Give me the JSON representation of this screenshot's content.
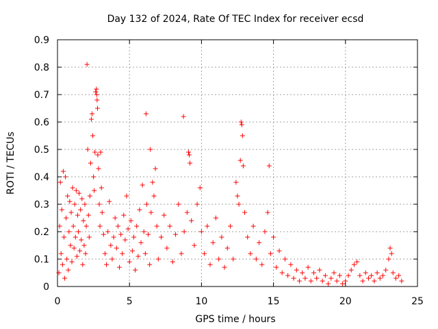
{
  "chart_data": {
    "type": "scatter",
    "title": "Day 132 of 2024, Rate Of TEC Index for receiver ecsd",
    "xlabel": "GPS time / hours",
    "ylabel": "ROTI / TECUs",
    "xlim": [
      0,
      25
    ],
    "ylim": [
      0,
      0.9
    ],
    "grid": true,
    "marker": "+",
    "series_color": "#ff0000",
    "x_ticks": [
      0,
      5,
      10,
      15,
      20,
      25
    ],
    "x_tick_labels": [
      "0",
      "5",
      "10",
      "15",
      "20",
      "25"
    ],
    "y_ticks": [
      0,
      0.1,
      0.2,
      0.3,
      0.4,
      0.5,
      0.6,
      0.7,
      0.8,
      0.9
    ],
    "y_tick_labels": [
      "0",
      "0.1",
      "0.2",
      "0.3",
      "0.4",
      "0.5",
      "0.6",
      "0.7",
      "0.8",
      "0.9"
    ],
    "series": [
      {
        "name": "ROTI",
        "points": [
          [
            0.1,
            0.05
          ],
          [
            0.15,
            0.22
          ],
          [
            0.2,
            0.38
          ],
          [
            0.25,
            0.12
          ],
          [
            0.3,
            0.28
          ],
          [
            0.35,
            0.08
          ],
          [
            0.4,
            0.42
          ],
          [
            0.45,
            0.18
          ],
          [
            0.5,
            0.03
          ],
          [
            0.55,
            0.4
          ],
          [
            0.6,
            0.25
          ],
          [
            0.65,
            0.1
          ],
          [
            0.7,
            0.33
          ],
          [
            0.75,
            0.06
          ],
          [
            0.8,
            0.2
          ],
          [
            0.85,
            0.31
          ],
          [
            0.9,
            0.15
          ],
          [
            0.95,
            0.27
          ],
          [
            1.0,
            0.09
          ],
          [
            1.05,
            0.36
          ],
          [
            1.1,
            0.22
          ],
          [
            1.15,
            0.14
          ],
          [
            1.2,
            0.3
          ],
          [
            1.25,
            0.18
          ],
          [
            1.3,
            0.35
          ],
          [
            1.35,
            0.11
          ],
          [
            1.4,
            0.26
          ],
          [
            1.45,
            0.2
          ],
          [
            1.5,
            0.34
          ],
          [
            1.55,
            0.13
          ],
          [
            1.6,
            0.28
          ],
          [
            1.65,
            0.17
          ],
          [
            1.7,
            0.32
          ],
          [
            1.75,
            0.08
          ],
          [
            1.8,
            0.24
          ],
          [
            1.85,
            0.15
          ],
          [
            1.9,
            0.3
          ],
          [
            1.95,
            0.12
          ],
          [
            2.0,
            0.22
          ],
          [
            2.05,
            0.81
          ],
          [
            2.1,
            0.5
          ],
          [
            2.15,
            0.26
          ],
          [
            2.2,
            0.18
          ],
          [
            2.25,
            0.33
          ],
          [
            2.3,
            0.45
          ],
          [
            2.35,
            0.61
          ],
          [
            2.4,
            0.63
          ],
          [
            2.45,
            0.55
          ],
          [
            2.5,
            0.4
          ],
          [
            2.55,
            0.35
          ],
          [
            2.6,
            0.49
          ],
          [
            2.65,
            0.71
          ],
          [
            2.7,
            0.72
          ],
          [
            2.72,
            0.7
          ],
          [
            2.75,
            0.68
          ],
          [
            2.78,
            0.65
          ],
          [
            2.8,
            0.48
          ],
          [
            2.85,
            0.43
          ],
          [
            2.9,
            0.3
          ],
          [
            2.95,
            0.22
          ],
          [
            3.0,
            0.49
          ],
          [
            3.05,
            0.36
          ],
          [
            3.1,
            0.27
          ],
          [
            3.2,
            0.19
          ],
          [
            3.3,
            0.12
          ],
          [
            3.4,
            0.08
          ],
          [
            3.5,
            0.2
          ],
          [
            3.6,
            0.31
          ],
          [
            3.7,
            0.15
          ],
          [
            3.8,
            0.1
          ],
          [
            3.9,
            0.18
          ],
          [
            4.0,
            0.25
          ],
          [
            4.1,
            0.14
          ],
          [
            4.2,
            0.22
          ],
          [
            4.3,
            0.07
          ],
          [
            4.4,
            0.19
          ],
          [
            4.5,
            0.12
          ],
          [
            4.6,
            0.26
          ],
          [
            4.7,
            0.17
          ],
          [
            4.8,
            0.33
          ],
          [
            4.9,
            0.21
          ],
          [
            5.0,
            0.09
          ],
          [
            5.1,
            0.24
          ],
          [
            5.2,
            0.13
          ],
          [
            5.3,
            0.18
          ],
          [
            5.4,
            0.06
          ],
          [
            5.5,
            0.22
          ],
          [
            5.6,
            0.11
          ],
          [
            5.7,
            0.28
          ],
          [
            5.8,
            0.16
          ],
          [
            5.9,
            0.37
          ],
          [
            6.0,
            0.2
          ],
          [
            6.1,
            0.12
          ],
          [
            6.15,
            0.63
          ],
          [
            6.2,
            0.3
          ],
          [
            6.3,
            0.19
          ],
          [
            6.4,
            0.08
          ],
          [
            6.45,
            0.5
          ],
          [
            6.5,
            0.27
          ],
          [
            6.6,
            0.38
          ],
          [
            6.7,
            0.33
          ],
          [
            6.8,
            0.43
          ],
          [
            6.9,
            0.22
          ],
          [
            7.0,
            0.1
          ],
          [
            7.2,
            0.18
          ],
          [
            7.4,
            0.26
          ],
          [
            7.6,
            0.14
          ],
          [
            7.8,
            0.22
          ],
          [
            8.0,
            0.09
          ],
          [
            8.2,
            0.19
          ],
          [
            8.4,
            0.3
          ],
          [
            8.6,
            0.12
          ],
          [
            8.75,
            0.62
          ],
          [
            8.8,
            0.2
          ],
          [
            9.0,
            0.27
          ],
          [
            9.1,
            0.49
          ],
          [
            9.15,
            0.48
          ],
          [
            9.2,
            0.45
          ],
          [
            9.3,
            0.24
          ],
          [
            9.5,
            0.15
          ],
          [
            9.7,
            0.3
          ],
          [
            9.9,
            0.36
          ],
          [
            10.0,
            0.2
          ],
          [
            10.2,
            0.12
          ],
          [
            10.4,
            0.22
          ],
          [
            10.6,
            0.08
          ],
          [
            10.8,
            0.16
          ],
          [
            11.0,
            0.25
          ],
          [
            11.2,
            0.1
          ],
          [
            11.4,
            0.18
          ],
          [
            11.6,
            0.07
          ],
          [
            11.8,
            0.14
          ],
          [
            12.0,
            0.22
          ],
          [
            12.2,
            0.1
          ],
          [
            12.4,
            0.38
          ],
          [
            12.5,
            0.33
          ],
          [
            12.6,
            0.3
          ],
          [
            12.7,
            0.46
          ],
          [
            12.75,
            0.6
          ],
          [
            12.8,
            0.59
          ],
          [
            12.85,
            0.55
          ],
          [
            12.9,
            0.44
          ],
          [
            13.0,
            0.27
          ],
          [
            13.2,
            0.18
          ],
          [
            13.4,
            0.12
          ],
          [
            13.6,
            0.22
          ],
          [
            13.8,
            0.1
          ],
          [
            14.0,
            0.16
          ],
          [
            14.2,
            0.08
          ],
          [
            14.4,
            0.2
          ],
          [
            14.6,
            0.27
          ],
          [
            14.7,
            0.44
          ],
          [
            14.8,
            0.12
          ],
          [
            15.0,
            0.18
          ],
          [
            15.2,
            0.07
          ],
          [
            15.4,
            0.13
          ],
          [
            15.6,
            0.05
          ],
          [
            15.8,
            0.1
          ],
          [
            16.0,
            0.04
          ],
          [
            16.2,
            0.08
          ],
          [
            16.4,
            0.03
          ],
          [
            16.6,
            0.06
          ],
          [
            16.8,
            0.02
          ],
          [
            17.0,
            0.05
          ],
          [
            17.2,
            0.03
          ],
          [
            17.4,
            0.07
          ],
          [
            17.6,
            0.02
          ],
          [
            17.8,
            0.05
          ],
          [
            18.0,
            0.03
          ],
          [
            18.2,
            0.06
          ],
          [
            18.4,
            0.02
          ],
          [
            18.6,
            0.04
          ],
          [
            18.8,
            0.01
          ],
          [
            19.0,
            0.03
          ],
          [
            19.2,
            0.05
          ],
          [
            19.4,
            0.02
          ],
          [
            19.6,
            0.04
          ],
          [
            19.8,
            0.01
          ],
          [
            20.0,
            0.02
          ],
          [
            20.2,
            0.04
          ],
          [
            20.4,
            0.06
          ],
          [
            20.6,
            0.08
          ],
          [
            20.8,
            0.09
          ],
          [
            21.0,
            0.04
          ],
          [
            21.2,
            0.02
          ],
          [
            21.4,
            0.05
          ],
          [
            21.6,
            0.03
          ],
          [
            21.8,
            0.04
          ],
          [
            22.0,
            0.02
          ],
          [
            22.2,
            0.05
          ],
          [
            22.4,
            0.03
          ],
          [
            22.6,
            0.04
          ],
          [
            22.8,
            0.06
          ],
          [
            23.0,
            0.1
          ],
          [
            23.1,
            0.14
          ],
          [
            23.2,
            0.12
          ],
          [
            23.3,
            0.05
          ],
          [
            23.5,
            0.03
          ],
          [
            23.7,
            0.04
          ],
          [
            23.9,
            0.02
          ]
        ]
      }
    ]
  }
}
